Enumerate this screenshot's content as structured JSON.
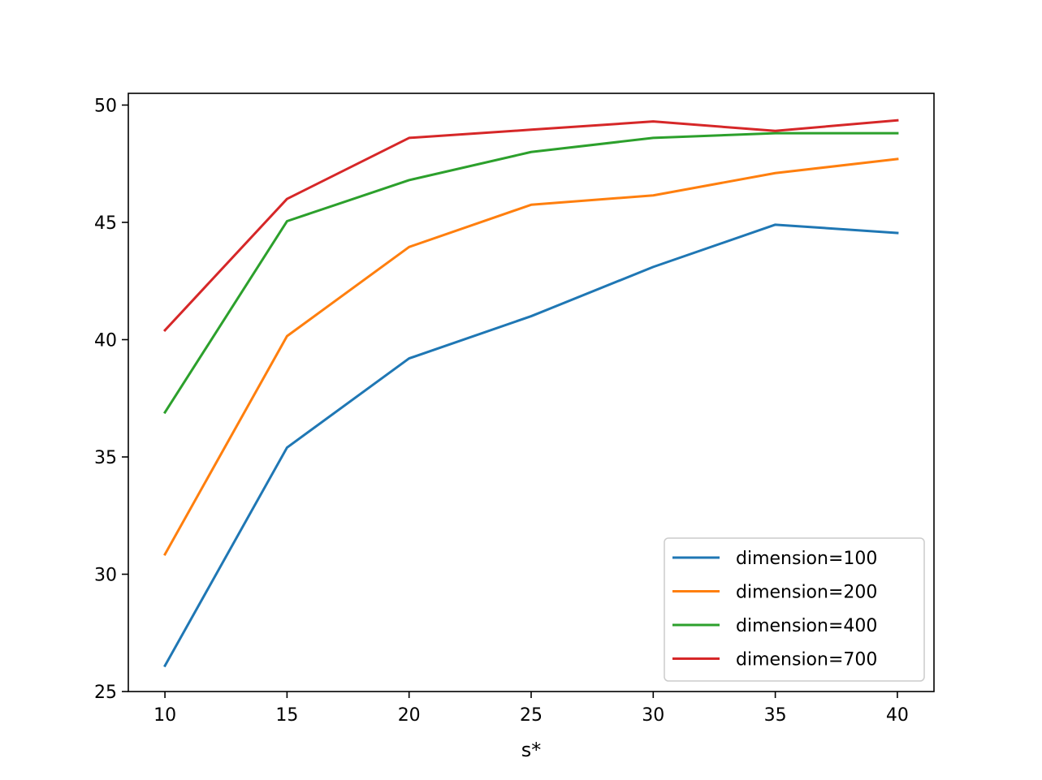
{
  "chart_data": {
    "type": "line",
    "title": "",
    "xlabel": "s*",
    "ylabel": "",
    "x": [
      10,
      15,
      20,
      25,
      30,
      35,
      40
    ],
    "xlim": [
      8.5,
      41.5
    ],
    "ylim": [
      25,
      50.5
    ],
    "xticks": [
      "10",
      "15",
      "20",
      "25",
      "30",
      "35",
      "40"
    ],
    "yticks": [
      "25",
      "30",
      "35",
      "40",
      "45",
      "50"
    ],
    "grid": false,
    "legend_position": "lower-right",
    "series": [
      {
        "name": "dimension=100",
        "color": "#1f77b4",
        "values": [
          26.1,
          35.4,
          39.2,
          41.0,
          43.1,
          44.9,
          44.55
        ]
      },
      {
        "name": "dimension=200",
        "color": "#ff7f0e",
        "values": [
          30.85,
          40.15,
          43.95,
          45.75,
          46.15,
          47.1,
          47.7
        ]
      },
      {
        "name": "dimension=400",
        "color": "#2ca02c",
        "values": [
          36.9,
          45.05,
          46.8,
          48.0,
          48.6,
          48.8,
          48.8
        ]
      },
      {
        "name": "dimension=700",
        "color": "#d62728",
        "values": [
          40.4,
          46.0,
          48.6,
          48.95,
          49.3,
          48.9,
          49.35
        ]
      }
    ]
  }
}
